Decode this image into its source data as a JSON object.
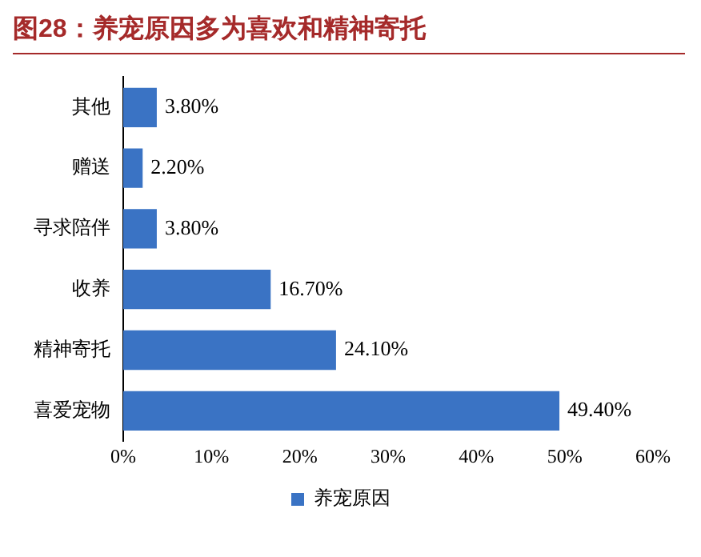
{
  "chart_data": {
    "type": "bar",
    "orientation": "horizontal",
    "title": "图28：养宠原因多为喜欢和精神寄托",
    "categories": [
      "其他",
      "赠送",
      "寻求陪伴",
      "收养",
      "精神寄托",
      "喜爱宠物"
    ],
    "series": [
      {
        "name": "养宠原因",
        "color": "#3a73c4",
        "values": [
          3.8,
          2.2,
          3.8,
          16.7,
          24.1,
          49.4
        ],
        "value_labels": [
          "3.80%",
          "2.20%",
          "3.80%",
          "16.70%",
          "24.10%",
          "49.40%"
        ]
      }
    ],
    "xlim": [
      0,
      60
    ],
    "xticks": [
      {
        "value": 0,
        "label": "0%"
      },
      {
        "value": 10,
        "label": "10%"
      },
      {
        "value": 20,
        "label": "20%"
      },
      {
        "value": 30,
        "label": "30%"
      },
      {
        "value": 40,
        "label": "40%"
      },
      {
        "value": 50,
        "label": "50%"
      },
      {
        "value": 60,
        "label": "60%"
      }
    ],
    "grid": false,
    "legend": "bottom"
  }
}
